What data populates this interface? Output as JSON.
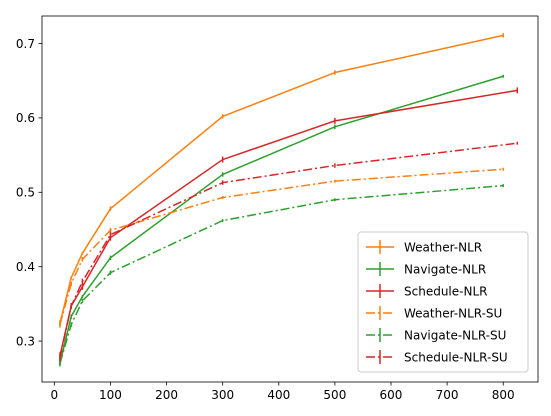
{
  "chart_data": {
    "type": "line",
    "title": "",
    "xlabel": "",
    "ylabel": "",
    "xlim": [
      -22,
      862
    ],
    "ylim": [
      0.245,
      0.737
    ],
    "xticks": [
      0,
      100,
      200,
      300,
      400,
      500,
      600,
      700,
      800
    ],
    "yticks": [
      0.3,
      0.4,
      0.5,
      0.6,
      0.7
    ],
    "xtick_labels": [
      "0",
      "100",
      "200",
      "300",
      "400",
      "500",
      "600",
      "700",
      "800"
    ],
    "ytick_labels": [
      "0.3",
      "0.4",
      "0.5",
      "0.6",
      "0.7"
    ],
    "grid": false,
    "legend_position": "lower-right",
    "series": [
      {
        "name": "Weather-NLR",
        "color": "#ff7f0e",
        "style": "solid",
        "x": [
          10,
          30,
          50,
          100,
          300,
          500,
          800
        ],
        "y": [
          0.324,
          0.385,
          0.418,
          0.478,
          0.602,
          0.661,
          0.711
        ],
        "err": [
          0.004,
          0.002,
          0.002,
          0.003,
          0.003,
          0.003,
          0.003
        ]
      },
      {
        "name": "Navigate-NLR",
        "color": "#2ca02c",
        "style": "solid",
        "x": [
          10,
          30,
          50,
          100,
          300,
          500,
          800
        ],
        "y": [
          0.27,
          0.333,
          0.36,
          0.412,
          0.524,
          0.588,
          0.656
        ],
        "err": [
          0.004,
          0.003,
          0.002,
          0.003,
          0.003,
          0.003,
          0.002
        ]
      },
      {
        "name": "Schedule-NLR",
        "color": "#d62728",
        "style": "solid",
        "x": [
          10,
          30,
          50,
          100,
          300,
          500,
          825
        ],
        "y": [
          0.28,
          0.347,
          0.373,
          0.439,
          0.544,
          0.596,
          0.637
        ],
        "err": [
          0.005,
          0.004,
          0.004,
          0.004,
          0.004,
          0.004,
          0.004
        ]
      },
      {
        "name": "Weather-NLR-SU",
        "color": "#ff7f0e",
        "style": "dashdot",
        "x": [
          10,
          30,
          50,
          100,
          300,
          500,
          800
        ],
        "y": [
          0.322,
          0.377,
          0.41,
          0.449,
          0.493,
          0.515,
          0.531
        ],
        "err": [
          0.004,
          0.003,
          0.003,
          0.003,
          0.002,
          0.002,
          0.002
        ]
      },
      {
        "name": "Navigate-NLR-SU",
        "color": "#2ca02c",
        "style": "dashdot",
        "x": [
          10,
          30,
          50,
          100,
          300,
          500,
          800
        ],
        "y": [
          0.27,
          0.322,
          0.354,
          0.392,
          0.462,
          0.49,
          0.509
        ],
        "err": [
          0.003,
          0.003,
          0.003,
          0.003,
          0.002,
          0.002,
          0.002
        ]
      },
      {
        "name": "Schedule-NLR-SU",
        "color": "#d62728",
        "style": "dashdot",
        "x": [
          10,
          30,
          50,
          100,
          300,
          500,
          825
        ],
        "y": [
          0.277,
          0.347,
          0.38,
          0.443,
          0.513,
          0.536,
          0.566
        ],
        "err": [
          0.005,
          0.004,
          0.004,
          0.004,
          0.003,
          0.003,
          0.002
        ]
      }
    ]
  }
}
